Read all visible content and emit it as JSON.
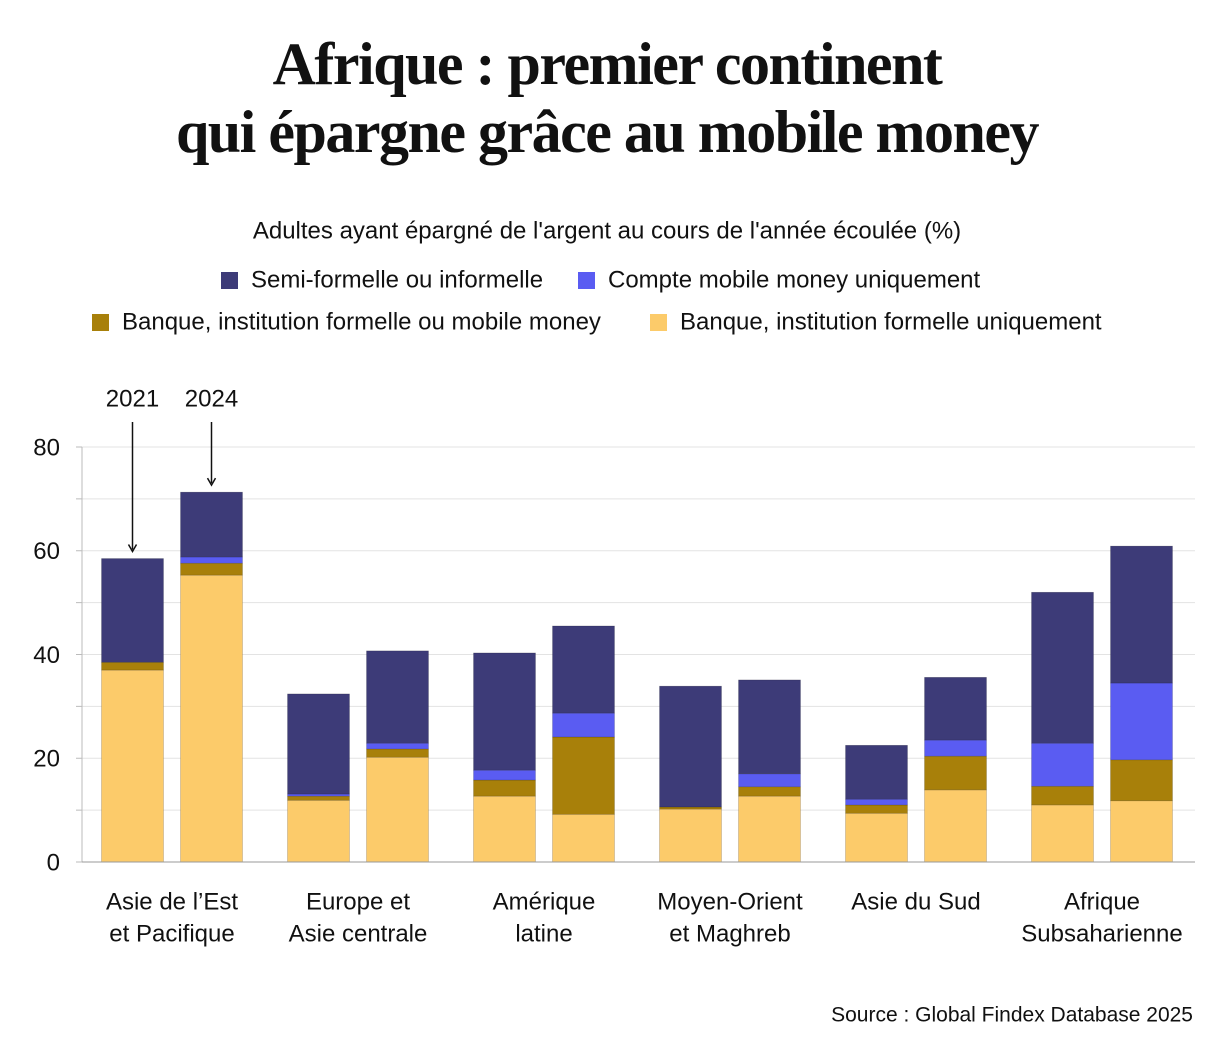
{
  "chart_data": {
    "type": "grouped_stacked_bar",
    "title": [
      "Afrique : premier continent",
      "qui épargne grâce au mobile money"
    ],
    "subtitle": "Adultes ayant épargné de l'argent au cours de l'année écoulée (%)",
    "source": "Source : Global Findex Database 2025",
    "categories": [
      [
        "Asie de l’Est",
        "et Pacifique"
      ],
      [
        "Europe et",
        "Asie centrale"
      ],
      [
        "Amérique",
        "latine"
      ],
      [
        "Moyen-Orient",
        "et Maghreb"
      ],
      [
        "Asie du Sud"
      ],
      [
        "Afrique",
        "Subsaharienne"
      ]
    ],
    "years": [
      "2021",
      "2024"
    ],
    "series": [
      {
        "name": "Semi-formelle ou informelle",
        "color": "#3d3b78",
        "values": [
          [
            20,
            12.5
          ],
          [
            19.3,
            17.8
          ],
          [
            22.6,
            16.8
          ],
          [
            23.3,
            18.1
          ],
          [
            10.4,
            12.1
          ],
          [
            29.1,
            26.4
          ]
        ]
      },
      {
        "name": "Compte mobile money uniquement",
        "color": "#5a5cf2",
        "values": [
          [
            0,
            1.2
          ],
          [
            0.4,
            1.1
          ],
          [
            1.9,
            4.6
          ],
          [
            0,
            2.5
          ],
          [
            1.1,
            3.1
          ],
          [
            8.3,
            14.8
          ]
        ]
      },
      {
        "name": "Banque, institution formelle ou mobile money",
        "color": "#a8800a",
        "values": [
          [
            1.5,
            2.3
          ],
          [
            0.8,
            1.6
          ],
          [
            3.1,
            14.9
          ],
          [
            0.4,
            1.8
          ],
          [
            1.6,
            6.5
          ],
          [
            3.6,
            7.9
          ]
        ]
      },
      {
        "name": "Banque, institution formelle uniquement",
        "color": "#fccb6a",
        "values": [
          [
            37,
            55.3
          ],
          [
            11.9,
            20.2
          ],
          [
            12.7,
            9.2
          ],
          [
            10.2,
            12.7
          ],
          [
            9.4,
            13.9
          ],
          [
            11,
            11.8
          ]
        ]
      }
    ],
    "ylim": [
      0,
      80
    ],
    "yticks": [
      0,
      20,
      40,
      60,
      80
    ],
    "grid_yticks": [
      0,
      10,
      20,
      30,
      40,
      50,
      60,
      70,
      80
    ],
    "grid": true
  }
}
